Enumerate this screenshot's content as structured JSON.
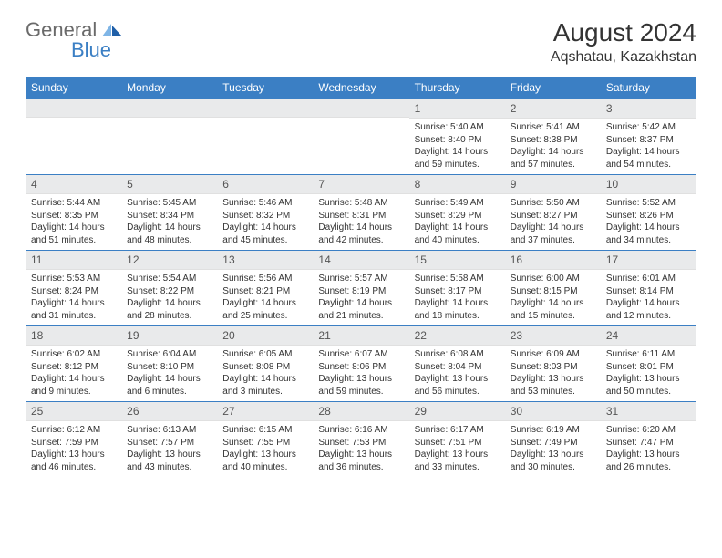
{
  "logo": {
    "text_gray": "General",
    "text_blue": "Blue",
    "icon_color_light": "#7fb5e6",
    "icon_color_dark": "#1f5fa8"
  },
  "title": "August 2024",
  "location": "Aqshatau, Kazakhstan",
  "colors": {
    "header_bg": "#3b7fc4",
    "header_text": "#ffffff",
    "daynum_bg": "#e9eaeb",
    "border_accent": "#3b7fc4"
  },
  "weekdays": [
    "Sunday",
    "Monday",
    "Tuesday",
    "Wednesday",
    "Thursday",
    "Friday",
    "Saturday"
  ],
  "weeks": [
    [
      null,
      null,
      null,
      null,
      {
        "n": "1",
        "sr": "Sunrise: 5:40 AM",
        "ss": "Sunset: 8:40 PM",
        "dl": "Daylight: 14 hours and 59 minutes."
      },
      {
        "n": "2",
        "sr": "Sunrise: 5:41 AM",
        "ss": "Sunset: 8:38 PM",
        "dl": "Daylight: 14 hours and 57 minutes."
      },
      {
        "n": "3",
        "sr": "Sunrise: 5:42 AM",
        "ss": "Sunset: 8:37 PM",
        "dl": "Daylight: 14 hours and 54 minutes."
      }
    ],
    [
      {
        "n": "4",
        "sr": "Sunrise: 5:44 AM",
        "ss": "Sunset: 8:35 PM",
        "dl": "Daylight: 14 hours and 51 minutes."
      },
      {
        "n": "5",
        "sr": "Sunrise: 5:45 AM",
        "ss": "Sunset: 8:34 PM",
        "dl": "Daylight: 14 hours and 48 minutes."
      },
      {
        "n": "6",
        "sr": "Sunrise: 5:46 AM",
        "ss": "Sunset: 8:32 PM",
        "dl": "Daylight: 14 hours and 45 minutes."
      },
      {
        "n": "7",
        "sr": "Sunrise: 5:48 AM",
        "ss": "Sunset: 8:31 PM",
        "dl": "Daylight: 14 hours and 42 minutes."
      },
      {
        "n": "8",
        "sr": "Sunrise: 5:49 AM",
        "ss": "Sunset: 8:29 PM",
        "dl": "Daylight: 14 hours and 40 minutes."
      },
      {
        "n": "9",
        "sr": "Sunrise: 5:50 AM",
        "ss": "Sunset: 8:27 PM",
        "dl": "Daylight: 14 hours and 37 minutes."
      },
      {
        "n": "10",
        "sr": "Sunrise: 5:52 AM",
        "ss": "Sunset: 8:26 PM",
        "dl": "Daylight: 14 hours and 34 minutes."
      }
    ],
    [
      {
        "n": "11",
        "sr": "Sunrise: 5:53 AM",
        "ss": "Sunset: 8:24 PM",
        "dl": "Daylight: 14 hours and 31 minutes."
      },
      {
        "n": "12",
        "sr": "Sunrise: 5:54 AM",
        "ss": "Sunset: 8:22 PM",
        "dl": "Daylight: 14 hours and 28 minutes."
      },
      {
        "n": "13",
        "sr": "Sunrise: 5:56 AM",
        "ss": "Sunset: 8:21 PM",
        "dl": "Daylight: 14 hours and 25 minutes."
      },
      {
        "n": "14",
        "sr": "Sunrise: 5:57 AM",
        "ss": "Sunset: 8:19 PM",
        "dl": "Daylight: 14 hours and 21 minutes."
      },
      {
        "n": "15",
        "sr": "Sunrise: 5:58 AM",
        "ss": "Sunset: 8:17 PM",
        "dl": "Daylight: 14 hours and 18 minutes."
      },
      {
        "n": "16",
        "sr": "Sunrise: 6:00 AM",
        "ss": "Sunset: 8:15 PM",
        "dl": "Daylight: 14 hours and 15 minutes."
      },
      {
        "n": "17",
        "sr": "Sunrise: 6:01 AM",
        "ss": "Sunset: 8:14 PM",
        "dl": "Daylight: 14 hours and 12 minutes."
      }
    ],
    [
      {
        "n": "18",
        "sr": "Sunrise: 6:02 AM",
        "ss": "Sunset: 8:12 PM",
        "dl": "Daylight: 14 hours and 9 minutes."
      },
      {
        "n": "19",
        "sr": "Sunrise: 6:04 AM",
        "ss": "Sunset: 8:10 PM",
        "dl": "Daylight: 14 hours and 6 minutes."
      },
      {
        "n": "20",
        "sr": "Sunrise: 6:05 AM",
        "ss": "Sunset: 8:08 PM",
        "dl": "Daylight: 14 hours and 3 minutes."
      },
      {
        "n": "21",
        "sr": "Sunrise: 6:07 AM",
        "ss": "Sunset: 8:06 PM",
        "dl": "Daylight: 13 hours and 59 minutes."
      },
      {
        "n": "22",
        "sr": "Sunrise: 6:08 AM",
        "ss": "Sunset: 8:04 PM",
        "dl": "Daylight: 13 hours and 56 minutes."
      },
      {
        "n": "23",
        "sr": "Sunrise: 6:09 AM",
        "ss": "Sunset: 8:03 PM",
        "dl": "Daylight: 13 hours and 53 minutes."
      },
      {
        "n": "24",
        "sr": "Sunrise: 6:11 AM",
        "ss": "Sunset: 8:01 PM",
        "dl": "Daylight: 13 hours and 50 minutes."
      }
    ],
    [
      {
        "n": "25",
        "sr": "Sunrise: 6:12 AM",
        "ss": "Sunset: 7:59 PM",
        "dl": "Daylight: 13 hours and 46 minutes."
      },
      {
        "n": "26",
        "sr": "Sunrise: 6:13 AM",
        "ss": "Sunset: 7:57 PM",
        "dl": "Daylight: 13 hours and 43 minutes."
      },
      {
        "n": "27",
        "sr": "Sunrise: 6:15 AM",
        "ss": "Sunset: 7:55 PM",
        "dl": "Daylight: 13 hours and 40 minutes."
      },
      {
        "n": "28",
        "sr": "Sunrise: 6:16 AM",
        "ss": "Sunset: 7:53 PM",
        "dl": "Daylight: 13 hours and 36 minutes."
      },
      {
        "n": "29",
        "sr": "Sunrise: 6:17 AM",
        "ss": "Sunset: 7:51 PM",
        "dl": "Daylight: 13 hours and 33 minutes."
      },
      {
        "n": "30",
        "sr": "Sunrise: 6:19 AM",
        "ss": "Sunset: 7:49 PM",
        "dl": "Daylight: 13 hours and 30 minutes."
      },
      {
        "n": "31",
        "sr": "Sunrise: 6:20 AM",
        "ss": "Sunset: 7:47 PM",
        "dl": "Daylight: 13 hours and 26 minutes."
      }
    ]
  ]
}
